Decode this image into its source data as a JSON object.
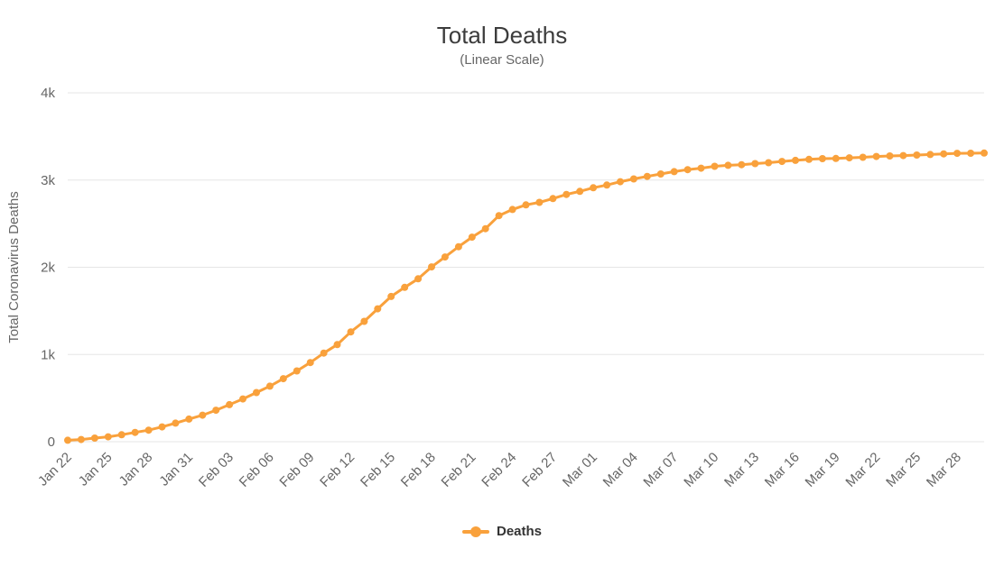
{
  "chart_data": {
    "type": "line",
    "title": "Total Deaths",
    "subtitle": "(Linear Scale)",
    "xlabel": "",
    "ylabel": "Total Coronavirus Deaths",
    "ylim": [
      0,
      4000
    ],
    "yticks": [
      0,
      1000,
      2000,
      3000,
      4000
    ],
    "ytick_labels": [
      "0",
      "1k",
      "2k",
      "3k",
      "4k"
    ],
    "grid": "horizontal",
    "legend_position": "bottom",
    "x_tick_every": 3,
    "colors": {
      "series": "#F9A13C",
      "grid": "#E6E6E6",
      "axis_text": "#666666",
      "title": "#3C3C3C",
      "legend_text": "#333333"
    },
    "x": [
      "Jan 22",
      "Jan 23",
      "Jan 24",
      "Jan 25",
      "Jan 26",
      "Jan 27",
      "Jan 28",
      "Jan 29",
      "Jan 30",
      "Jan 31",
      "Feb 01",
      "Feb 02",
      "Feb 03",
      "Feb 04",
      "Feb 05",
      "Feb 06",
      "Feb 07",
      "Feb 08",
      "Feb 09",
      "Feb 10",
      "Feb 11",
      "Feb 12",
      "Feb 13",
      "Feb 14",
      "Feb 15",
      "Feb 16",
      "Feb 17",
      "Feb 18",
      "Feb 19",
      "Feb 20",
      "Feb 21",
      "Feb 22",
      "Feb 23",
      "Feb 24",
      "Feb 25",
      "Feb 26",
      "Feb 27",
      "Feb 28",
      "Feb 29",
      "Mar 01",
      "Mar 02",
      "Mar 03",
      "Mar 04",
      "Mar 05",
      "Mar 06",
      "Mar 07",
      "Mar 08",
      "Mar 09",
      "Mar 10",
      "Mar 11",
      "Mar 12",
      "Mar 13",
      "Mar 14",
      "Mar 15",
      "Mar 16",
      "Mar 17",
      "Mar 18",
      "Mar 19",
      "Mar 20",
      "Mar 21",
      "Mar 22",
      "Mar 23",
      "Mar 24",
      "Mar 25",
      "Mar 26",
      "Mar 27",
      "Mar 28",
      "Mar 29",
      "Mar 30"
    ],
    "series": [
      {
        "name": "Deaths",
        "values": [
          17,
          25,
          41,
          56,
          80,
          106,
          132,
          170,
          213,
          259,
          304,
          361,
          425,
          490,
          563,
          637,
          722,
          811,
          908,
          1016,
          1113,
          1259,
          1380,
          1523,
          1665,
          1770,
          1868,
          2004,
          2118,
          2236,
          2345,
          2442,
          2592,
          2663,
          2715,
          2744,
          2788,
          2835,
          2870,
          2912,
          2943,
          2981,
          3013,
          3042,
          3070,
          3097,
          3119,
          3136,
          3158,
          3169,
          3176,
          3189,
          3199,
          3213,
          3226,
          3237,
          3245,
          3248,
          3255,
          3261,
          3270,
          3277,
          3281,
          3287,
          3293,
          3300,
          3306,
          3308,
          3310
        ]
      }
    ]
  }
}
